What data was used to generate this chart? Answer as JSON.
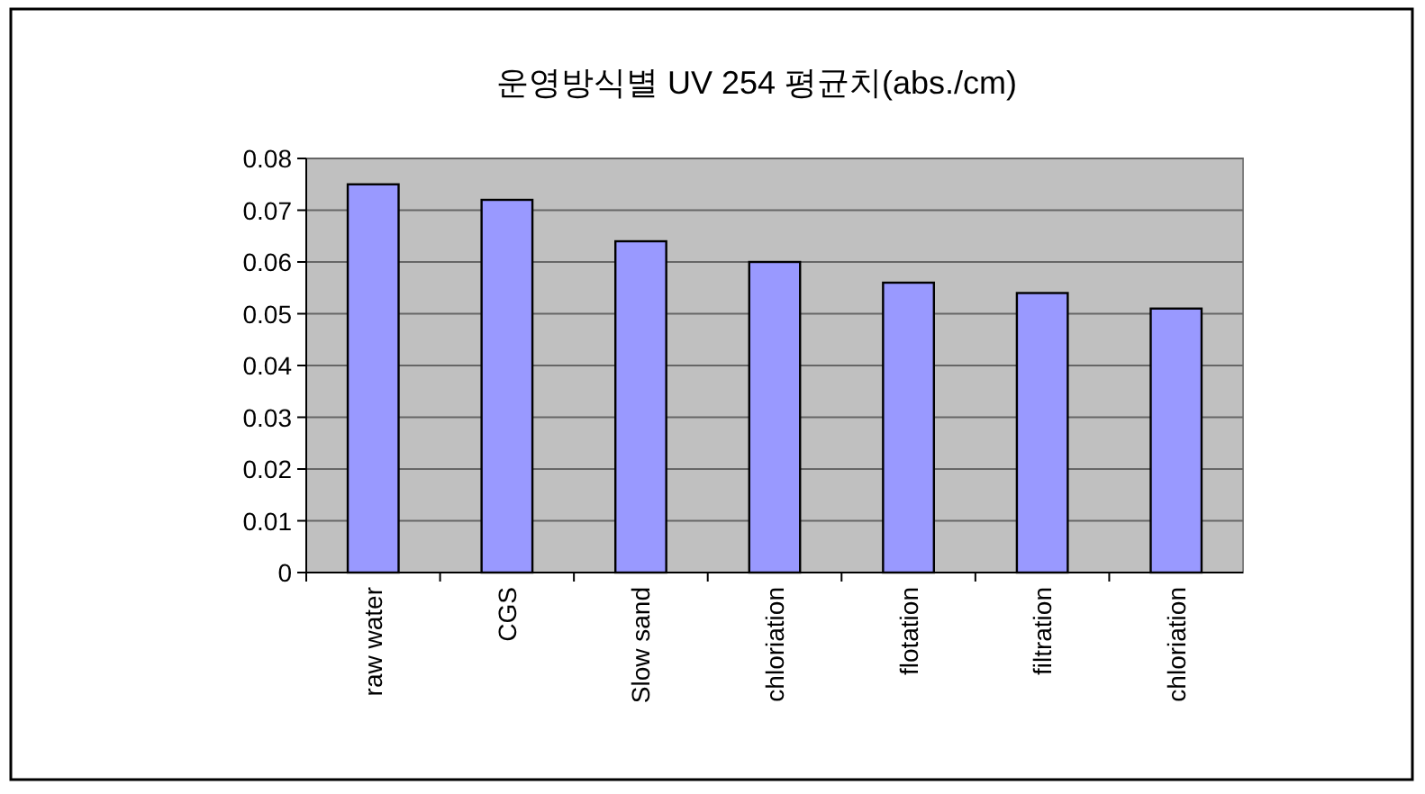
{
  "chart_data": {
    "type": "bar",
    "title": "운영방식별 UV 254  평균치(abs./cm)",
    "categories": [
      "raw water",
      "CGS",
      "Slow sand",
      "chloriation",
      "flotation",
      "filtration",
      "chloriation"
    ],
    "values": [
      0.075,
      0.072,
      0.064,
      0.06,
      0.056,
      0.054,
      0.051
    ],
    "color": "#9999ff",
    "ylim": [
      0,
      0.08
    ],
    "yticks": [
      0,
      0.01,
      0.02,
      0.03,
      0.04,
      0.05,
      0.06,
      0.07,
      0.08
    ],
    "grid": "y"
  }
}
